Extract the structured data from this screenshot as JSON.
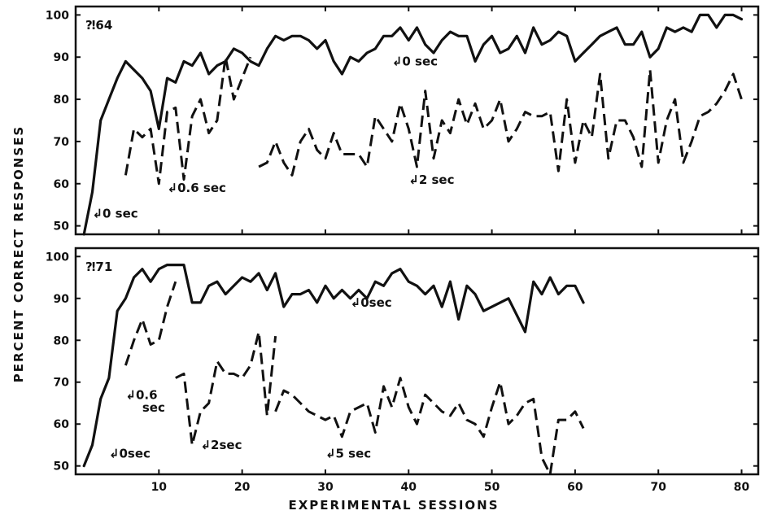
{
  "chart_data": {
    "type": "line",
    "xlabel": "EXPERIMENTAL SESSIONS",
    "ylabel": "PERCENT CORRECT RESPONSES",
    "xticks": [
      10,
      20,
      30,
      40,
      50,
      60,
      70,
      80
    ],
    "yticks": [
      50,
      60,
      70,
      80,
      90,
      100
    ],
    "xlim": [
      0,
      82
    ],
    "ylim": [
      48,
      102
    ],
    "panels": [
      {
        "id": "#64",
        "id_label": "⁈64",
        "series": [
          {
            "style": "solid",
            "label": "0 sec",
            "x": [
              1,
              2,
              3,
              4,
              5,
              6,
              7,
              8,
              9,
              10,
              11,
              12,
              13,
              14,
              15,
              16,
              17,
              18,
              19,
              20,
              21,
              22,
              23,
              24,
              25,
              26,
              27,
              28,
              29,
              30,
              31,
              32,
              33,
              34,
              35,
              36,
              37,
              38,
              39,
              40,
              41,
              42,
              43,
              44,
              45,
              46,
              47,
              48,
              49,
              50,
              51,
              52,
              53,
              54,
              55,
              56,
              57,
              58,
              59,
              60,
              61,
              62,
              63,
              64,
              65,
              66,
              67,
              68,
              69,
              70,
              71,
              72,
              73,
              74,
              75,
              76,
              77,
              78,
              79,
              80
            ],
            "values": [
              48,
              58,
              75,
              80,
              85,
              89,
              87,
              85,
              82,
              73,
              85,
              84,
              89,
              88,
              91,
              86,
              88,
              89,
              92,
              91,
              89,
              88,
              92,
              95,
              94,
              95,
              95,
              94,
              92,
              94,
              89,
              86,
              90,
              89,
              91,
              92,
              95,
              95,
              97,
              94,
              97,
              93,
              91,
              94,
              96,
              95,
              95,
              89,
              93,
              95,
              91,
              92,
              95,
              91,
              97,
              93,
              94,
              96,
              95,
              89,
              91,
              93,
              95,
              96,
              97,
              93,
              93,
              96,
              90,
              92,
              97,
              96,
              97,
              96,
              100,
              100,
              97,
              100,
              100,
              99
            ]
          },
          {
            "style": "dashed",
            "label": "0.6 sec",
            "x": [
              6,
              7,
              8,
              9,
              10,
              11,
              12,
              13,
              14,
              15,
              16,
              17,
              18,
              19,
              20,
              21
            ],
            "values": [
              62,
              73,
              71,
              73,
              60,
              77,
              78,
              61,
              76,
              80,
              72,
              75,
              90,
              80,
              85,
              90
            ]
          },
          {
            "style": "dashed",
            "label": "2 sec",
            "x": [
              22,
              23,
              24,
              25,
              26,
              27,
              28,
              29,
              30,
              31,
              32,
              33,
              34,
              35,
              36,
              37,
              38,
              39,
              40,
              41,
              42,
              43,
              44,
              45,
              46,
              47,
              48,
              49,
              50,
              51,
              52,
              53,
              54,
              55,
              56,
              57,
              58,
              59,
              60,
              61,
              62,
              63,
              64,
              65,
              66,
              67,
              68,
              69,
              70,
              71,
              72,
              73,
              74,
              75,
              76,
              77,
              78,
              79,
              80
            ],
            "values": [
              64,
              65,
              70,
              65,
              62,
              70,
              73,
              68,
              66,
              72,
              67,
              67,
              67,
              64,
              76,
              73,
              70,
              79,
              73,
              64,
              82,
              66,
              75,
              72,
              80,
              74,
              79,
              73,
              75,
              80,
              70,
              73,
              77,
              76,
              76,
              77,
              63,
              80,
              65,
              75,
              71,
              86,
              66,
              75,
              75,
              71,
              64,
              87,
              65,
              75,
              80,
              65,
              70,
              76,
              77,
              79,
              82,
              86,
              80
            ]
          }
        ],
        "annotations": [
          {
            "text": "↲0 sec",
            "x": 38,
            "y": 88
          },
          {
            "text": "↲0.6 sec",
            "x": 11,
            "y": 58
          },
          {
            "text": "↲2 sec",
            "x": 40,
            "y": 60
          },
          {
            "text": "↲0 sec",
            "x": 2,
            "y": 52
          }
        ]
      },
      {
        "id": "#71",
        "id_label": "⁈71",
        "series": [
          {
            "style": "solid",
            "label": "0 sec",
            "x": [
              1,
              2,
              3,
              4,
              5,
              6,
              7,
              8,
              9,
              10,
              11,
              12,
              13,
              14,
              15,
              16,
              17,
              18,
              19,
              20,
              21,
              22,
              23,
              24,
              25,
              26,
              27,
              28,
              29,
              30,
              31,
              32,
              33,
              34,
              35,
              36,
              37,
              38,
              39,
              40,
              41,
              42,
              43,
              44,
              45,
              46,
              47,
              48,
              49,
              50,
              51,
              52,
              53,
              54,
              55,
              56,
              57,
              58,
              59,
              60,
              61
            ],
            "values": [
              50,
              55,
              66,
              71,
              87,
              90,
              95,
              97,
              94,
              97,
              98,
              98,
              98,
              89,
              89,
              93,
              94,
              91,
              93,
              95,
              94,
              96,
              92,
              96,
              88,
              91,
              91,
              92,
              89,
              93,
              90,
              92,
              90,
              92,
              90,
              94,
              93,
              96,
              97,
              94,
              93,
              91,
              93,
              88,
              94,
              85,
              93,
              91,
              87,
              88,
              89,
              90,
              86,
              82,
              94,
              91,
              95,
              91,
              93,
              93,
              89
            ]
          },
          {
            "style": "dashed",
            "label": "0.6 sec",
            "x": [
              6,
              7,
              8,
              9,
              10,
              11,
              12
            ],
            "values": [
              74,
              80,
              85,
              79,
              80,
              88,
              94
            ]
          },
          {
            "style": "dashed",
            "label": "2 sec",
            "x": [
              12,
              13,
              14,
              15,
              16,
              17,
              18,
              19,
              20,
              21,
              22,
              23,
              24
            ],
            "values": [
              71,
              72,
              55,
              63,
              65,
              75,
              72,
              72,
              71,
              74,
              82,
              62,
              81
            ]
          },
          {
            "style": "dashed",
            "label": "5 sec",
            "x": [
              24,
              25,
              26,
              27,
              28,
              29,
              30,
              31,
              32,
              33,
              34,
              35,
              36,
              37,
              38,
              39,
              40,
              41,
              42,
              43,
              44,
              45,
              46,
              47,
              48,
              49,
              50,
              51,
              52,
              53,
              54,
              55,
              56,
              57,
              58,
              59,
              60,
              61
            ],
            "values": [
              63,
              68,
              67,
              65,
              63,
              62,
              61,
              62,
              57,
              63,
              64,
              65,
              58,
              69,
              64,
              71,
              64,
              60,
              67,
              65,
              63,
              62,
              65,
              61,
              60,
              57,
              64,
              70,
              60,
              62,
              65,
              66,
              52,
              48,
              61,
              61,
              63,
              59
            ]
          }
        ],
        "annotations": [
          {
            "text": "↲0sec",
            "x": 33,
            "y": 88
          },
          {
            "text": "↲0.6",
            "x": 6,
            "y": 66
          },
          {
            "text": "sec",
            "x": 8,
            "y": 63
          },
          {
            "text": "↲2sec",
            "x": 15,
            "y": 54
          },
          {
            "text": "↲5 sec",
            "x": 30,
            "y": 52
          },
          {
            "text": "↲0sec",
            "x": 4,
            "y": 52
          }
        ]
      }
    ]
  }
}
